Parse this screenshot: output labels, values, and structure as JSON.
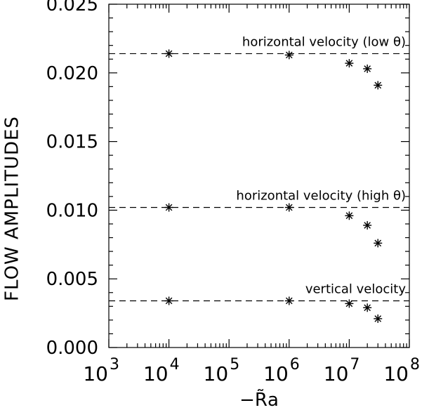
{
  "chart_data": {
    "type": "scatter",
    "title": "",
    "xlabel": "−R̃a",
    "ylabel": "FLOW AMPLITUDES",
    "xscale": "log",
    "xlim": [
      1000,
      100000000
    ],
    "ylim": [
      0.0,
      0.025
    ],
    "grid": false,
    "marker": "asterisk",
    "x_ticks": [
      {
        "base": "10",
        "exp": "3",
        "value": 1000
      },
      {
        "base": "10",
        "exp": "4",
        "value": 10000
      },
      {
        "base": "10",
        "exp": "5",
        "value": 100000
      },
      {
        "base": "10",
        "exp": "6",
        "value": 1000000
      },
      {
        "base": "10",
        "exp": "7",
        "value": 10000000
      },
      {
        "base": "10",
        "exp": "8",
        "value": 100000000
      }
    ],
    "y_ticks": [
      {
        "label": "0.000",
        "value": 0.0
      },
      {
        "label": "0.005",
        "value": 0.005
      },
      {
        "label": "0.010",
        "value": 0.01
      },
      {
        "label": "0.015",
        "value": 0.015
      },
      {
        "label": "0.020",
        "value": 0.02
      },
      {
        "label": "0.025",
        "value": 0.025
      }
    ],
    "series": [
      {
        "annotation": "horizontal velocity (low θ)",
        "reference_line": 0.0214,
        "x": [
          10000,
          1000000,
          10000000,
          20000000,
          30000000
        ],
        "y": [
          0.0214,
          0.0213,
          0.0207,
          0.0203,
          0.0191
        ]
      },
      {
        "annotation": "horizontal velocity (high θ)",
        "reference_line": 0.0102,
        "x": [
          10000,
          1000000,
          10000000,
          20000000,
          30000000
        ],
        "y": [
          0.0102,
          0.0102,
          0.0096,
          0.0089,
          0.0076
        ]
      },
      {
        "annotation": "vertical velocity",
        "reference_line": 0.0034,
        "x": [
          10000,
          1000000,
          10000000,
          20000000,
          30000000
        ],
        "y": [
          0.0034,
          0.0034,
          0.0032,
          0.0029,
          0.0021
        ]
      }
    ]
  }
}
